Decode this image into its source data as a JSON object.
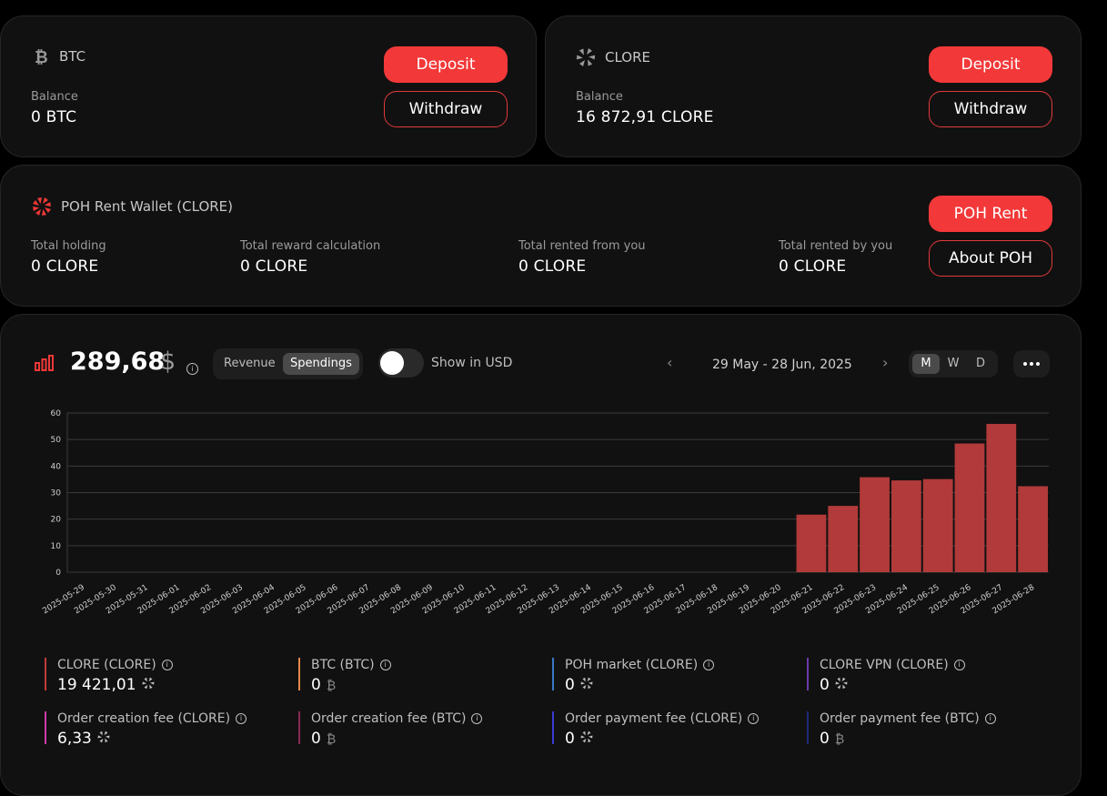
{
  "btc_wallet": {
    "currency": "BTC",
    "balance_label": "Balance",
    "balance": "0 BTC",
    "deposit_label": "Deposit",
    "withdraw_label": "Withdraw"
  },
  "clore_wallet": {
    "currency": "CLORE",
    "balance_label": "Balance",
    "balance": "16 872,91 CLORE",
    "deposit_label": "Deposit",
    "withdraw_label": "Withdraw"
  },
  "poh_wallet": {
    "title": "POH Rent Wallet (CLORE)",
    "stats": [
      {
        "label": "Total holding",
        "value": "0 CLORE"
      },
      {
        "label": "Total reward calculation",
        "value": "0 CLORE"
      },
      {
        "label": "Total rented from you",
        "value": "0 CLORE"
      },
      {
        "label": "Total rented by you",
        "value": "0 CLORE"
      }
    ],
    "rent_label": "POH Rent",
    "about_label": "About POH"
  },
  "stats_panel": {
    "total": "289,68",
    "currency_symbol": "$",
    "tabs": [
      "Revenue",
      "Spendings"
    ],
    "active_tab": "Spendings",
    "usd_toggle_label": "Show in USD",
    "usd_toggle_on": false,
    "date_range": "29 May - 28 Jun, 2025",
    "periods": [
      "M",
      "W",
      "D"
    ],
    "active_period": "M"
  },
  "colors": {
    "accent": "#f23838",
    "bar": "#b23a3a"
  },
  "chart_data": {
    "type": "bar",
    "categories": [
      "2025-05-29",
      "2025-05-30",
      "2025-05-31",
      "2025-06-01",
      "2025-06-02",
      "2025-06-03",
      "2025-06-04",
      "2025-06-05",
      "2025-06-06",
      "2025-06-07",
      "2025-06-08",
      "2025-06-09",
      "2025-06-10",
      "2025-06-11",
      "2025-06-12",
      "2025-06-13",
      "2025-06-14",
      "2025-06-15",
      "2025-06-16",
      "2025-06-17",
      "2025-06-18",
      "2025-06-19",
      "2025-06-20",
      "2025-06-21",
      "2025-06-22",
      "2025-06-23",
      "2025-06-24",
      "2025-06-25",
      "2025-06-26",
      "2025-06-27",
      "2025-06-28"
    ],
    "values": [
      0,
      0,
      0,
      0,
      0,
      0,
      0,
      0,
      0,
      0,
      0,
      0,
      0,
      0,
      0,
      0,
      0,
      0,
      0,
      0,
      0,
      0,
      0,
      21.7,
      25,
      35.8,
      34.6,
      35.1,
      48.5,
      55.9,
      32.4
    ],
    "yticks": [
      0,
      10,
      20,
      30,
      40,
      50,
      60
    ],
    "ylim": [
      0,
      60
    ],
    "grid": true
  },
  "legend": [
    {
      "name": "CLORE (CLORE)",
      "value": "19 421,01",
      "unit_icon": "clore-icon",
      "color": "#c43a3a"
    },
    {
      "name": "BTC (BTC)",
      "value": "0",
      "unit_icon": "btc-icon",
      "color": "#e8894a"
    },
    {
      "name": "POH market (CLORE)",
      "value": "0",
      "unit_icon": "clore-icon",
      "color": "#3a78c4"
    },
    {
      "name": "CLORE VPN (CLORE)",
      "value": "0",
      "unit_icon": "clore-icon",
      "color": "#6b3aa8"
    },
    {
      "name": "Order creation fee (CLORE)",
      "value": "6,33",
      "unit_icon": "clore-icon",
      "color": "#d23aa8"
    },
    {
      "name": "Order creation fee (BTC)",
      "value": "0",
      "unit_icon": "btc-icon",
      "color": "#8a2a55"
    },
    {
      "name": "Order payment fee (CLORE)",
      "value": "0",
      "unit_icon": "clore-icon",
      "color": "#3a3ad2"
    },
    {
      "name": "Order payment fee (BTC)",
      "value": "0",
      "unit_icon": "btc-icon",
      "color": "#1e2a78"
    }
  ]
}
